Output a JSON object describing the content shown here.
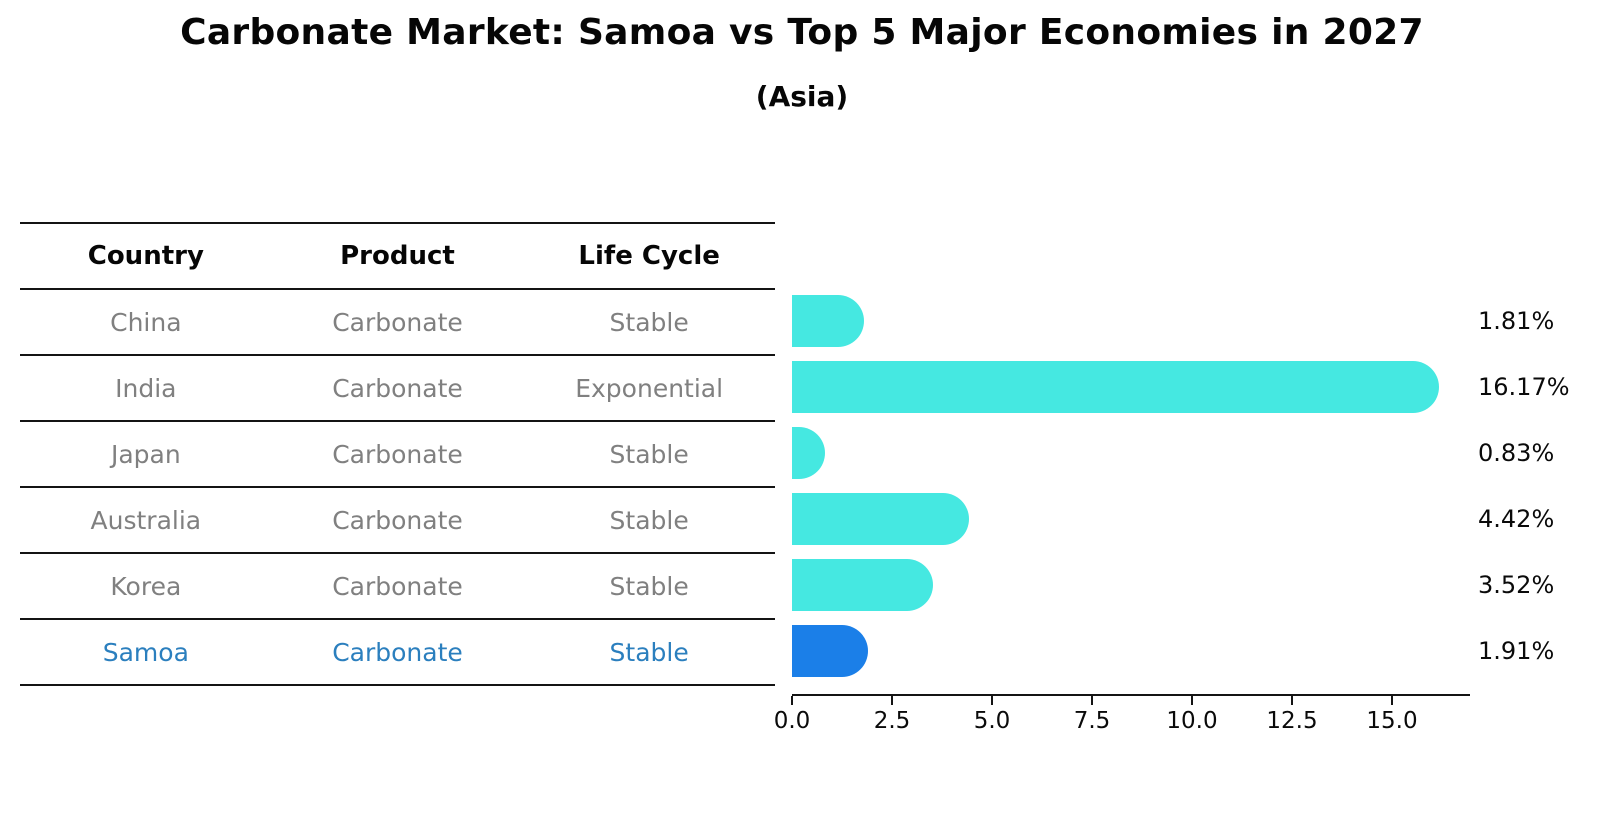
{
  "title": "Carbonate Market: Samoa vs Top 5 Major Economies in 2027",
  "subtitle": "(Asia)",
  "table": {
    "headers": [
      "Country",
      "Product",
      "Life Cycle"
    ],
    "rows": [
      {
        "country": "China",
        "product": "Carbonate",
        "life_cycle": "Stable",
        "highlight": false
      },
      {
        "country": "India",
        "product": "Carbonate",
        "life_cycle": "Exponential",
        "highlight": false
      },
      {
        "country": "Japan",
        "product": "Carbonate",
        "life_cycle": "Stable",
        "highlight": false
      },
      {
        "country": "Australia",
        "product": "Carbonate",
        "life_cycle": "Stable",
        "highlight": false
      },
      {
        "country": "Korea",
        "product": "Carbonate",
        "life_cycle": "Stable",
        "highlight": false
      },
      {
        "country": "Samoa",
        "product": "Carbonate",
        "life_cycle": "Stable",
        "highlight": true
      }
    ]
  },
  "chart_data": {
    "type": "bar",
    "orientation": "horizontal",
    "categories": [
      "China",
      "India",
      "Japan",
      "Australia",
      "Korea",
      "Samoa"
    ],
    "values": [
      1.81,
      16.17,
      0.83,
      4.42,
      3.52,
      1.91
    ],
    "value_labels": [
      "1.81%",
      "16.17%",
      "0.83%",
      "4.42%",
      "3.52%",
      "1.91%"
    ],
    "x_ticks": [
      0.0,
      2.5,
      5.0,
      7.5,
      10.0,
      12.5,
      15.0
    ],
    "x_tick_labels": [
      "0.0",
      "2.5",
      "5.0",
      "7.5",
      "10.0",
      "12.5",
      "15.0"
    ],
    "xlim": [
      0,
      17.0
    ],
    "grid": false,
    "legend": false,
    "bar_color": "#45E8E1",
    "highlight_color": "#1B7FE8",
    "highlight_index": 5
  },
  "colors": {
    "highlight_text": "#2B7FBE",
    "table_text": "#808080",
    "axis": "#141414"
  }
}
